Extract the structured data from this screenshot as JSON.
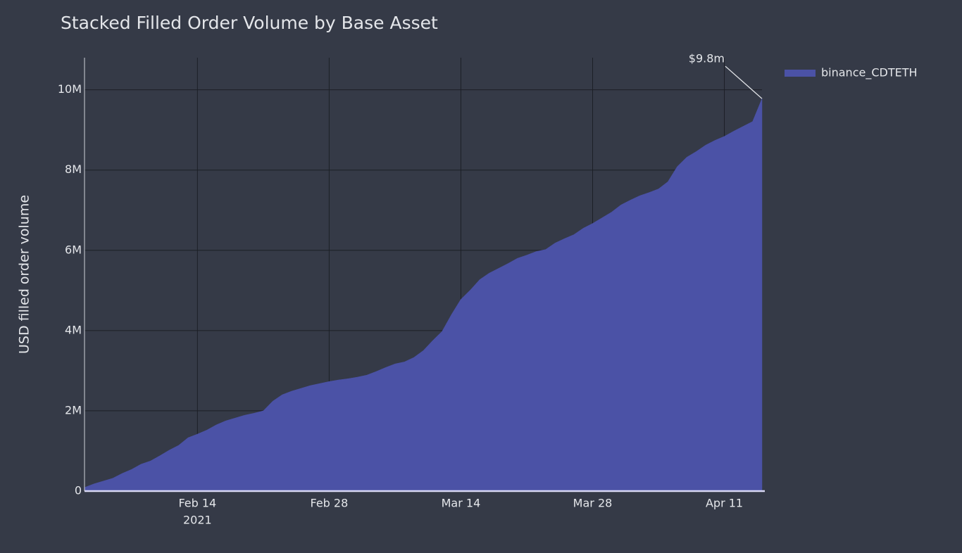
{
  "chart_data": {
    "type": "area",
    "title": "Stacked Filled Order Volume by Base Asset",
    "y_label": "USD filled order volume",
    "x_year_label": "2021",
    "annotation": "$9.8m",
    "x": [
      "2021-02-02",
      "2021-02-03",
      "2021-02-04",
      "2021-02-05",
      "2021-02-06",
      "2021-02-07",
      "2021-02-08",
      "2021-02-09",
      "2021-02-10",
      "2021-02-11",
      "2021-02-12",
      "2021-02-13",
      "2021-02-14",
      "2021-02-15",
      "2021-02-16",
      "2021-02-17",
      "2021-02-18",
      "2021-02-19",
      "2021-02-20",
      "2021-02-21",
      "2021-02-22",
      "2021-02-23",
      "2021-02-24",
      "2021-02-25",
      "2021-02-26",
      "2021-02-27",
      "2021-02-28",
      "2021-03-01",
      "2021-03-02",
      "2021-03-03",
      "2021-03-04",
      "2021-03-05",
      "2021-03-06",
      "2021-03-07",
      "2021-03-08",
      "2021-03-09",
      "2021-03-10",
      "2021-03-11",
      "2021-03-12",
      "2021-03-13",
      "2021-03-14",
      "2021-03-15",
      "2021-03-16",
      "2021-03-17",
      "2021-03-18",
      "2021-03-19",
      "2021-03-20",
      "2021-03-21",
      "2021-03-22",
      "2021-03-23",
      "2021-03-24",
      "2021-03-25",
      "2021-03-26",
      "2021-03-27",
      "2021-03-28",
      "2021-03-29",
      "2021-03-30",
      "2021-03-31",
      "2021-04-01",
      "2021-04-02",
      "2021-04-03",
      "2021-04-04",
      "2021-04-05",
      "2021-04-06",
      "2021-04-07",
      "2021-04-08",
      "2021-04-09",
      "2021-04-10",
      "2021-04-11",
      "2021-04-12",
      "2021-04-13",
      "2021-04-14",
      "2021-04-15"
    ],
    "series": [
      {
        "name": "binance_CDTETH",
        "color": "#4b52a6",
        "values": [
          90000,
          180000,
          250000,
          320000,
          440000,
          540000,
          670000,
          750000,
          880000,
          1020000,
          1140000,
          1330000,
          1420000,
          1520000,
          1650000,
          1750000,
          1820000,
          1890000,
          1940000,
          2000000,
          2240000,
          2400000,
          2490000,
          2560000,
          2630000,
          2680000,
          2730000,
          2770000,
          2800000,
          2840000,
          2890000,
          2980000,
          3080000,
          3170000,
          3220000,
          3330000,
          3500000,
          3750000,
          3980000,
          4400000,
          4780000,
          5010000,
          5270000,
          5430000,
          5550000,
          5670000,
          5800000,
          5880000,
          5970000,
          6020000,
          6180000,
          6290000,
          6390000,
          6550000,
          6670000,
          6810000,
          6950000,
          7130000,
          7250000,
          7360000,
          7440000,
          7530000,
          7710000,
          8090000,
          8320000,
          8460000,
          8620000,
          8740000,
          8840000,
          8970000,
          9090000,
          9210000,
          9780000
        ]
      }
    ],
    "xlim": [
      "2021-02-02",
      "2021-04-15"
    ],
    "xticks": [
      {
        "value": "2021-02-14",
        "label": "Feb 14"
      },
      {
        "value": "2021-02-28",
        "label": "Feb 28"
      },
      {
        "value": "2021-03-14",
        "label": "Mar 14"
      },
      {
        "value": "2021-03-28",
        "label": "Mar 28"
      },
      {
        "value": "2021-04-11",
        "label": "Apr 11"
      }
    ],
    "ylim": [
      0,
      10800000
    ],
    "yticks": [
      0,
      {
        "value": 2000000,
        "label": "2M"
      },
      {
        "value": 4000000,
        "label": "4M"
      },
      {
        "value": 6000000,
        "label": "6M"
      },
      {
        "value": 8000000,
        "label": "8M"
      },
      {
        "value": 10000000,
        "label": "10M"
      }
    ],
    "grid": true,
    "legend": "right"
  }
}
